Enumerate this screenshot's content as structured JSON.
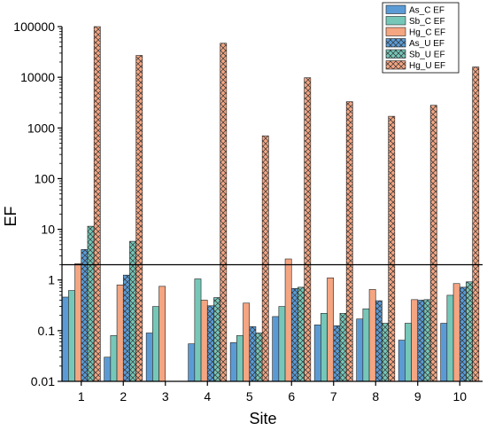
{
  "chart_data": {
    "type": "bar",
    "title": "",
    "xlabel": "Site",
    "ylabel": "EF",
    "y_scale": "log",
    "ylim": [
      0.01,
      100000
    ],
    "y_ticks": [
      0.01,
      0.1,
      1,
      10,
      100,
      1000,
      10000,
      100000
    ],
    "y_tick_labels": [
      "0.01",
      "0.1",
      "1",
      "10",
      "100",
      "1000",
      "10000",
      "100000"
    ],
    "grid": false,
    "legend_position": "top-right",
    "categories": [
      "1",
      "2",
      "3",
      "4",
      "5",
      "6",
      "7",
      "8",
      "9",
      "10"
    ],
    "reference_line": {
      "y": 2
    },
    "series": [
      {
        "name": "As_C EF",
        "color": "#5b9bd5",
        "pattern": "solid",
        "values": [
          0.46,
          0.03,
          0.09,
          0.055,
          0.058,
          0.19,
          0.13,
          0.17,
          0.065,
          0.14
        ]
      },
      {
        "name": "Sb_C EF",
        "color": "#76c7b8",
        "pattern": "solid",
        "values": [
          0.62,
          0.08,
          0.3,
          1.05,
          0.08,
          0.3,
          0.22,
          0.27,
          0.14,
          0.5
        ]
      },
      {
        "name": "Hg_C EF",
        "color": "#f4a582",
        "pattern": "solid",
        "values": [
          2.1,
          0.8,
          0.75,
          0.4,
          0.35,
          2.6,
          1.1,
          0.65,
          0.41,
          0.85
        ]
      },
      {
        "name": "As_U EF",
        "color": "#5b9bd5",
        "pattern": "crosshatch",
        "values": [
          4.0,
          1.25,
          null,
          0.31,
          0.12,
          0.68,
          0.125,
          0.39,
          0.4,
          0.72
        ]
      },
      {
        "name": "Sb_U EF",
        "color": "#76c7b8",
        "pattern": "crosshatch",
        "values": [
          11.5,
          5.8,
          null,
          0.45,
          0.09,
          0.72,
          0.22,
          0.14,
          0.41,
          0.92
        ]
      },
      {
        "name": "Hg_U EF",
        "color": "#f4a582",
        "pattern": "crosshatch",
        "values": [
          100000,
          27000,
          null,
          47000,
          700,
          9800,
          3300,
          1700,
          2800,
          16000
        ]
      }
    ]
  }
}
